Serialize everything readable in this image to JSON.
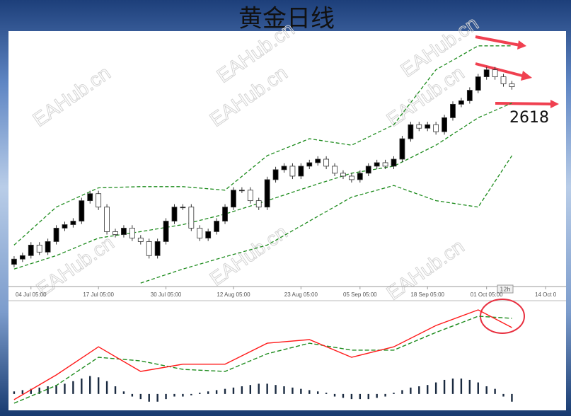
{
  "chart_data": {
    "type": "candlestick",
    "title": "黄金日线",
    "open": [
      2320,
      2329,
      2335,
      2353,
      2341,
      2359,
      2382,
      2388,
      2394,
      2429,
      2441,
      2418,
      2376,
      2371,
      2382,
      2365,
      2359,
      2335,
      2359,
      2394,
      2418,
      2418,
      2382,
      2365,
      2376,
      2394,
      2418,
      2447,
      2447,
      2429,
      2418,
      2465,
      2482,
      2488,
      2471,
      2488,
      2494,
      2500,
      2488,
      2476,
      2471,
      2465,
      2476,
      2488,
      2494,
      2488,
      2500,
      2535,
      2559,
      2553,
      2559,
      2547,
      2571,
      2594,
      2600,
      2618,
      2641,
      2653,
      2641,
      2629
    ],
    "high": [
      2334,
      2340,
      2358,
      2358,
      2364,
      2387,
      2393,
      2399,
      2434,
      2446,
      2446,
      2423,
      2381,
      2387,
      2387,
      2370,
      2364,
      2364,
      2399,
      2423,
      2423,
      2423,
      2387,
      2381,
      2399,
      2423,
      2452,
      2452,
      2452,
      2434,
      2470,
      2487,
      2493,
      2493,
      2493,
      2499,
      2505,
      2505,
      2493,
      2481,
      2476,
      2481,
      2493,
      2499,
      2499,
      2505,
      2540,
      2564,
      2564,
      2564,
      2564,
      2576,
      2599,
      2605,
      2623,
      2646,
      2658,
      2658,
      2646,
      2634
    ],
    "low": [
      2315,
      2324,
      2330,
      2336,
      2336,
      2354,
      2377,
      2383,
      2389,
      2424,
      2413,
      2371,
      2366,
      2366,
      2360,
      2354,
      2330,
      2330,
      2354,
      2389,
      2413,
      2377,
      2360,
      2360,
      2371,
      2389,
      2413,
      2442,
      2424,
      2413,
      2413,
      2460,
      2477,
      2466,
      2466,
      2483,
      2489,
      2483,
      2471,
      2466,
      2460,
      2460,
      2471,
      2483,
      2483,
      2483,
      2495,
      2530,
      2548,
      2548,
      2542,
      2542,
      2566,
      2589,
      2595,
      2613,
      2636,
      2636,
      2624,
      2619
    ],
    "close": [
      2329,
      2335,
      2353,
      2341,
      2359,
      2382,
      2388,
      2394,
      2429,
      2441,
      2418,
      2376,
      2371,
      2382,
      2365,
      2359,
      2335,
      2359,
      2394,
      2418,
      2418,
      2382,
      2365,
      2376,
      2394,
      2418,
      2447,
      2447,
      2429,
      2418,
      2465,
      2482,
      2488,
      2471,
      2488,
      2494,
      2500,
      2488,
      2476,
      2471,
      2465,
      2476,
      2488,
      2494,
      2488,
      2500,
      2535,
      2559,
      2553,
      2559,
      2547,
      2571,
      2594,
      2600,
      2618,
      2641,
      2653,
      2641,
      2629,
      2624
    ],
    "up_color": "#000000",
    "down_color": "#ffffff",
    "xlim": [
      -1,
      65
    ],
    "ylim": [
      2276,
      2724
    ],
    "xticks": [
      {
        "value": 2,
        "label": "04 Jul 05:00"
      },
      {
        "value": 10,
        "label": "17 Jul 05:00"
      },
      {
        "value": 18,
        "label": "30 Jul 05:00"
      },
      {
        "value": 26,
        "label": "12 Aug 05:00"
      },
      {
        "value": 34,
        "label": "23 Aug 05:00"
      },
      {
        "value": 41,
        "label": "05 Sep 05:00"
      },
      {
        "value": 49,
        "label": "18 Sep 05:00"
      },
      {
        "value": 56,
        "label": "01 Oct 05:00"
      },
      {
        "value": 63,
        "label": "14 Oct 0"
      }
    ],
    "bands": {
      "x": [
        0,
        5,
        10,
        15,
        20,
        25,
        30,
        35,
        40,
        45,
        50,
        55,
        59
      ],
      "upper": [
        2353,
        2418,
        2451,
        2453,
        2453,
        2447,
        2506,
        2535,
        2524,
        2559,
        2653,
        2694,
        2694
      ],
      "middle": [
        2312,
        2335,
        2365,
        2376,
        2388,
        2406,
        2429,
        2453,
        2476,
        2488,
        2524,
        2571,
        2596
      ],
      "lower": [
        null,
        null,
        null,
        2288,
        2312,
        2333,
        2353,
        2394,
        2435,
        2455,
        2429,
        2418,
        2506
      ],
      "color": "#1e8c1e"
    },
    "annotation": "2618",
    "period_label": "12h",
    "watermark": "EAHub.cn",
    "macd": {
      "ylim": [
        -5,
        35
      ],
      "x": [
        0,
        5,
        10,
        15,
        20,
        25,
        30,
        35,
        40,
        45,
        50,
        55,
        59
      ],
      "macd": [
        -2.2,
        7.4,
        18.4,
        8.8,
        11.6,
        11.6,
        19.8,
        21.2,
        14.3,
        18.4,
        26.7,
        32.8,
        25.9
      ],
      "signal": [
        -3.6,
        3.3,
        14.3,
        12.9,
        9.6,
        8.8,
        15.7,
        19.8,
        17.1,
        17.1,
        24.0,
        30.3,
        29.5
      ],
      "histogram": [
        1,
        1.5,
        2,
        2.5,
        3,
        3.5,
        4,
        5,
        6,
        7,
        6.5,
        5,
        3,
        1,
        -1,
        -2,
        -3,
        -3,
        -2,
        -1,
        -1,
        -0.5,
        0.5,
        1,
        1.5,
        2,
        2.5,
        3,
        3.5,
        4,
        4,
        3.5,
        3,
        2.5,
        2,
        1.5,
        1,
        0.5,
        -1,
        -1.5,
        -2,
        -2,
        -2,
        -1.5,
        -1,
        0.5,
        1.5,
        2.5,
        3,
        3.5,
        4.5,
        5.5,
        6,
        6,
        5.5,
        4.5,
        3,
        2,
        -1,
        -3
      ],
      "macd_color": "#ff1a1a",
      "signal_color": "#1e8c1e",
      "hist_color": "#1a2a40"
    }
  }
}
